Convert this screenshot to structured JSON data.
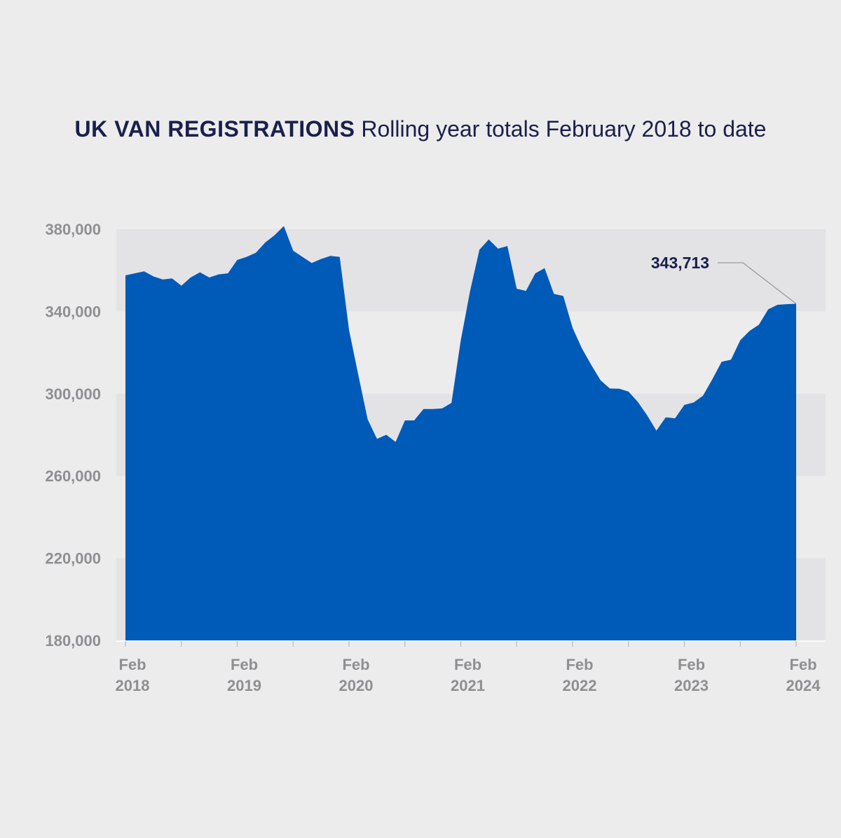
{
  "title": {
    "bold": "UK VAN REGISTRATIONS",
    "rest": "Rolling year totals February 2018 to date"
  },
  "colors": {
    "background": "#ececec",
    "band": "#e3e3e5",
    "area": "#005ab8",
    "axis_text": "#8f8f93",
    "title": "#1a1f4c",
    "leader_line": "#9a9a9a"
  },
  "chart_data": {
    "type": "area",
    "title": "UK VAN REGISTRATIONS Rolling year totals February 2018 to date",
    "xlabel": "",
    "ylabel": "",
    "ylim": [
      180000,
      380000
    ],
    "yticks": [
      180000,
      220000,
      260000,
      300000,
      340000,
      380000
    ],
    "ytick_labels": [
      "180,000",
      "220,000",
      "260,000",
      "300,000",
      "340,000",
      "380,000"
    ],
    "xticks": [
      {
        "index": 0,
        "line1": "Feb",
        "line2": "2018"
      },
      {
        "index": 12,
        "line1": "Feb",
        "line2": "2019"
      },
      {
        "index": 24,
        "line1": "Feb",
        "line2": "2020"
      },
      {
        "index": 36,
        "line1": "Feb",
        "line2": "2021"
      },
      {
        "index": 48,
        "line1": "Feb",
        "line2": "2022"
      },
      {
        "index": 60,
        "line1": "Feb",
        "line2": "2023"
      },
      {
        "index": 72,
        "line1": "Feb",
        "line2": "2024"
      }
    ],
    "x_start": "Feb 2018",
    "x_end": "Feb 2024",
    "grid": "alternating horizontal bands",
    "values": [
      357500,
      358500,
      359500,
      357000,
      355500,
      356000,
      352500,
      356500,
      359000,
      356500,
      358000,
      358500,
      365000,
      366500,
      368500,
      373500,
      377000,
      381500,
      369500,
      366500,
      363500,
      365500,
      367000,
      366500,
      331000,
      309000,
      287500,
      278000,
      280000,
      276500,
      287000,
      287000,
      292500,
      292500,
      292800,
      295500,
      326000,
      350000,
      370000,
      375000,
      370500,
      371800,
      351000,
      350000,
      358500,
      361000,
      348500,
      347500,
      332000,
      322000,
      314000,
      306500,
      302500,
      302400,
      301000,
      296000,
      289500,
      282000,
      288500,
      288000,
      294500,
      295700,
      299000,
      307000,
      315500,
      316500,
      326000,
      330500,
      333500,
      341000,
      343200,
      343500,
      343713
    ],
    "annotation": {
      "label": "343,713",
      "value": 343713,
      "index": 72
    }
  }
}
